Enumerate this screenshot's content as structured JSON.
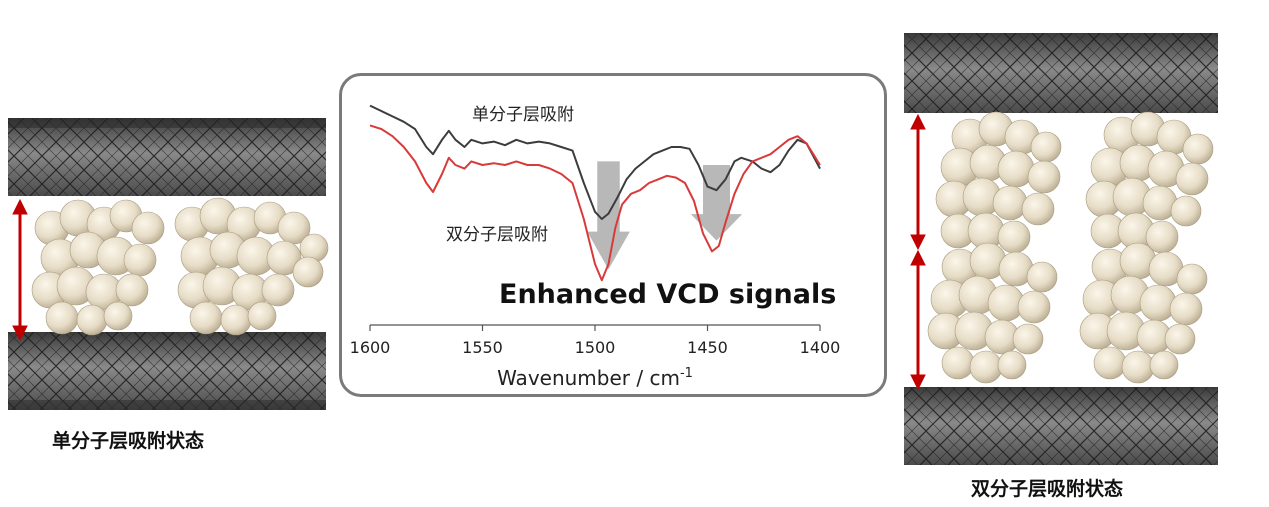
{
  "left_panel": {
    "caption": "单分子层吸附状态"
  },
  "right_panel": {
    "caption": "双分子层吸附状态"
  },
  "spectrum": {
    "headline": "Enhanced VCD signals",
    "label_monolayer": "单分子层吸附",
    "label_bilayer": "双分子层吸附",
    "colors": {
      "monolayer": "#3c3c3c",
      "bilayer": "#d83a3a",
      "marker": "#b8b8b8",
      "frame": "#7a7a7a"
    }
  },
  "chart_data": {
    "type": "line",
    "xlabel": "Wavenumber / cm",
    "xlabel_sup": "-1",
    "xlim": [
      1600,
      1400
    ],
    "x_ticks": [
      1600,
      1550,
      1500,
      1450,
      1400
    ],
    "x_tick_labels": [
      "1600",
      "1550",
      "1500",
      "1450",
      "1400"
    ],
    "grid": false,
    "series": [
      {
        "name": "单分子层吸附",
        "color": "#3c3c3c",
        "x": [
          1600,
          1595,
          1590,
          1585,
          1580,
          1575,
          1572,
          1568,
          1565,
          1562,
          1558,
          1555,
          1550,
          1545,
          1540,
          1535,
          1530,
          1525,
          1520,
          1515,
          1510,
          1505,
          1500,
          1497,
          1494,
          1490,
          1486,
          1482,
          1478,
          1474,
          1470,
          1466,
          1462,
          1458,
          1454,
          1450,
          1446,
          1442,
          1438,
          1435,
          1430,
          1426,
          1422,
          1418,
          1414,
          1410,
          1406,
          1403,
          1400
        ],
        "y": [
          0.93,
          0.9,
          0.87,
          0.84,
          0.8,
          0.7,
          0.66,
          0.74,
          0.79,
          0.74,
          0.7,
          0.74,
          0.72,
          0.73,
          0.71,
          0.74,
          0.72,
          0.73,
          0.72,
          0.7,
          0.68,
          0.5,
          0.34,
          0.3,
          0.33,
          0.42,
          0.52,
          0.58,
          0.62,
          0.66,
          0.68,
          0.7,
          0.7,
          0.69,
          0.6,
          0.48,
          0.46,
          0.52,
          0.62,
          0.64,
          0.62,
          0.58,
          0.56,
          0.6,
          0.68,
          0.74,
          0.72,
          0.65,
          0.58
        ]
      },
      {
        "name": "双分子层吸附",
        "color": "#d83a3a",
        "x": [
          1600,
          1595,
          1590,
          1585,
          1580,
          1575,
          1572,
          1568,
          1565,
          1562,
          1558,
          1555,
          1550,
          1545,
          1540,
          1535,
          1530,
          1525,
          1520,
          1515,
          1510,
          1505,
          1500,
          1497,
          1494,
          1491,
          1488,
          1484,
          1480,
          1476,
          1472,
          1468,
          1464,
          1460,
          1456,
          1452,
          1448,
          1445,
          1442,
          1438,
          1434,
          1430,
          1426,
          1422,
          1418,
          1414,
          1410,
          1406,
          1403,
          1400
        ],
        "y": [
          0.82,
          0.8,
          0.76,
          0.7,
          0.62,
          0.5,
          0.45,
          0.55,
          0.64,
          0.6,
          0.58,
          0.62,
          0.6,
          0.61,
          0.6,
          0.62,
          0.6,
          0.6,
          0.58,
          0.55,
          0.5,
          0.3,
          0.05,
          -0.04,
          0.05,
          0.25,
          0.38,
          0.44,
          0.46,
          0.5,
          0.52,
          0.54,
          0.53,
          0.5,
          0.4,
          0.22,
          0.12,
          0.15,
          0.28,
          0.44,
          0.55,
          0.62,
          0.64,
          0.66,
          0.7,
          0.74,
          0.76,
          0.72,
          0.66,
          0.6
        ]
      }
    ],
    "markers": [
      {
        "type": "down-arrow",
        "x_center": 1494,
        "x_width": 10,
        "y_top": 0.62,
        "y_bottom": 0.02
      },
      {
        "type": "down-arrow",
        "x_center": 1446,
        "x_width": 12,
        "y_top": 0.6,
        "y_bottom": 0.18
      }
    ]
  }
}
